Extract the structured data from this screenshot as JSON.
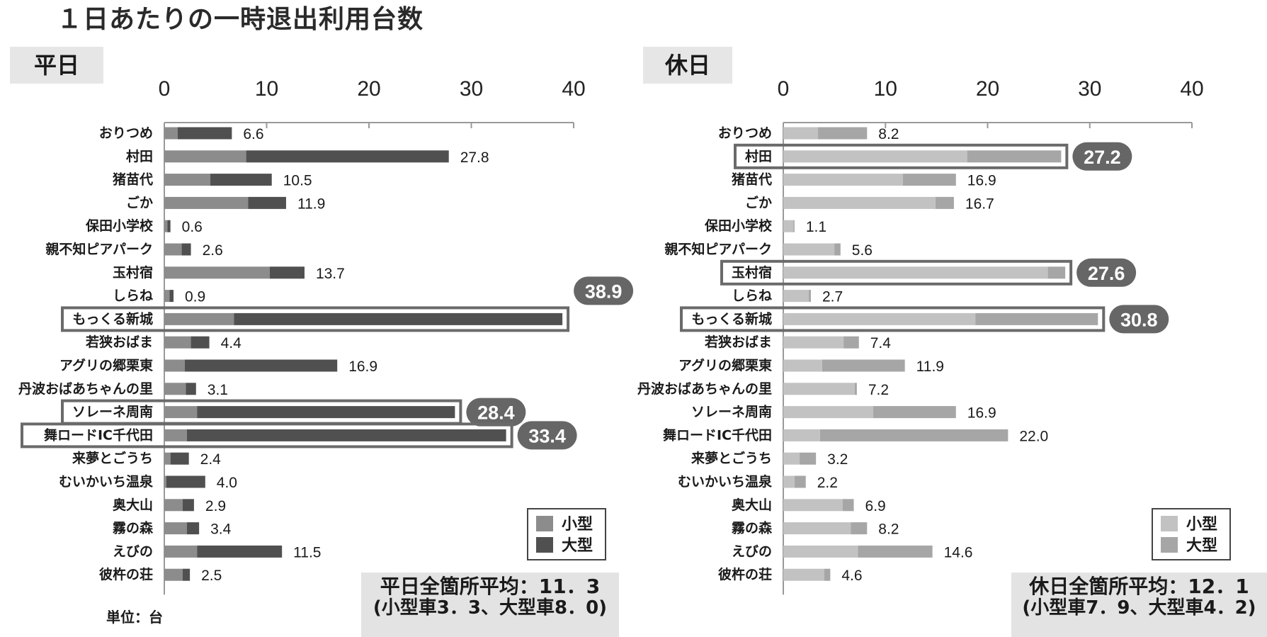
{
  "page": {
    "title": "１日あたりの一時退出利用台数",
    "unit_note": "単位：台"
  },
  "legend": {
    "small": "小型",
    "large": "大型"
  },
  "chart_data": [
    {
      "type": "bar",
      "panel": "平日",
      "xlim": [
        0,
        40
      ],
      "x_ticks": [
        "0",
        "10",
        "20",
        "30",
        "40"
      ],
      "categories": [
        "おりつめ",
        "村田",
        "猪苗代",
        "ごか",
        "保田小学校",
        "親不知ピアパーク",
        "玉村宿",
        "しらね",
        "もっくる新城",
        "若狭おばま",
        "アグリの郷栗東",
        "丹波おばあちゃんの里",
        "ソレーネ周南",
        "舞ロードIC千代田",
        "来夢とごうち",
        "むいかいち温泉",
        "奥大山",
        "霧の森",
        "えびの",
        "彼杵の荘"
      ],
      "series": [
        {
          "name": "小型",
          "values": [
            1.3,
            8.0,
            4.5,
            8.2,
            0.3,
            1.7,
            10.3,
            0.5,
            6.8,
            2.6,
            2.0,
            2.1,
            3.2,
            2.2,
            0.6,
            0.2,
            1.8,
            2.2,
            3.2,
            1.8
          ]
        },
        {
          "name": "大型",
          "values": [
            5.3,
            19.8,
            6.0,
            3.7,
            0.3,
            0.9,
            3.4,
            0.4,
            32.1,
            1.8,
            14.9,
            1.0,
            25.2,
            31.2,
            1.8,
            3.8,
            1.1,
            1.2,
            8.3,
            0.7
          ]
        }
      ],
      "totals": [
        "6.6",
        "27.8",
        "10.5",
        "11.9",
        "0.6",
        "2.6",
        "13.7",
        "0.9",
        "38.9",
        "4.4",
        "16.9",
        "3.1",
        "28.4",
        "33.4",
        "2.4",
        "4.0",
        "2.9",
        "3.4",
        "11.5",
        "2.5"
      ],
      "highlighted": [
        "もっくる新城",
        "ソレーネ周南",
        "舞ロードIC千代田"
      ],
      "summary": {
        "line1": "平日全箇所平均：11．3",
        "line2": "(小型車3．3、大型車8．0)"
      }
    },
    {
      "type": "bar",
      "panel": "休日",
      "xlim": [
        0,
        40
      ],
      "x_ticks": [
        "0",
        "10",
        "20",
        "30",
        "40"
      ],
      "categories": [
        "おりつめ",
        "村田",
        "猪苗代",
        "ごか",
        "保田小学校",
        "親不知ピアパーク",
        "玉村宿",
        "しらね",
        "もっくる新城",
        "若狭おばま",
        "アグリの郷栗東",
        "丹波おばあちゃんの里",
        "ソレーネ周南",
        "舞ロードIC千代田",
        "来夢とごうち",
        "むいかいち温泉",
        "奥大山",
        "霧の森",
        "えびの",
        "彼杵の荘"
      ],
      "series": [
        {
          "name": "小型",
          "values": [
            3.4,
            18.0,
            11.7,
            14.9,
            1.0,
            5.0,
            25.9,
            2.5,
            18.8,
            5.9,
            3.8,
            7.0,
            8.8,
            3.6,
            1.6,
            1.1,
            5.8,
            6.6,
            7.3,
            4.0
          ]
        },
        {
          "name": "大型",
          "values": [
            4.8,
            9.2,
            5.2,
            1.8,
            0.1,
            0.6,
            1.7,
            0.2,
            12.0,
            1.5,
            8.1,
            0.2,
            8.1,
            18.4,
            1.6,
            1.1,
            1.1,
            1.6,
            7.3,
            0.6
          ]
        }
      ],
      "totals": [
        "8.2",
        "27.2",
        "16.9",
        "16.7",
        "1.1",
        "5.6",
        "27.6",
        "2.7",
        "30.8",
        "7.4",
        "11.9",
        "7.2",
        "16.9",
        "22.0",
        "3.2",
        "2.2",
        "6.9",
        "8.2",
        "14.6",
        "4.6"
      ],
      "highlighted": [
        "村田",
        "玉村宿",
        "もっくる新城"
      ],
      "summary": {
        "line1": "休日全箇所平均：12．1",
        "line2": "(小型車7．9、大型車4．2)"
      }
    }
  ],
  "colors": {
    "weekday_small": "#8c8c8c",
    "weekday_large": "#505050",
    "holiday_small": "#c2c2c2",
    "holiday_large": "#a6a6a6",
    "box": "#6a6a6a",
    "badge": "#666666"
  }
}
